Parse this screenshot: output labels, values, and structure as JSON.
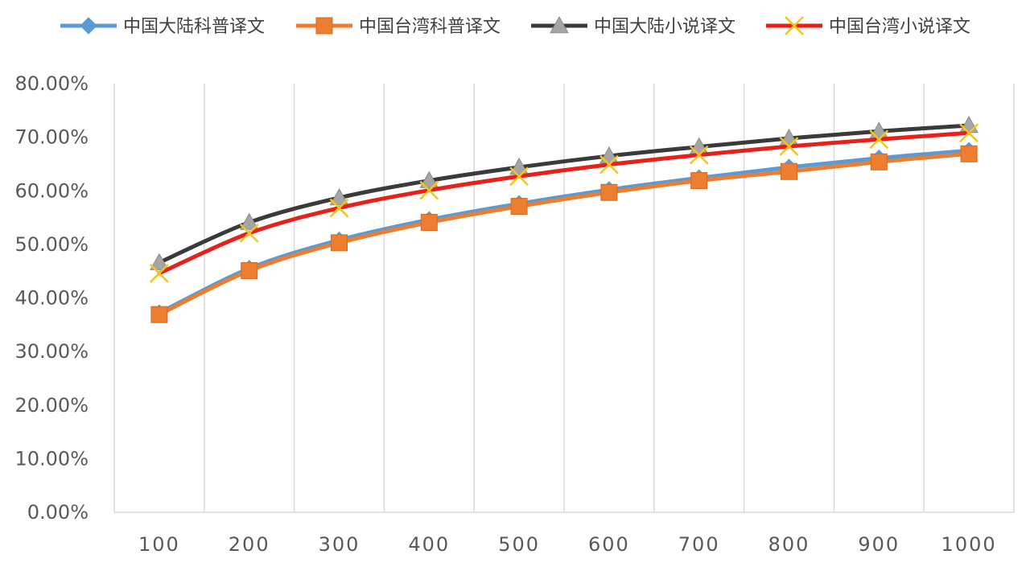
{
  "chart_data": {
    "type": "line",
    "title": "",
    "xlabel": "",
    "ylabel": "",
    "categories": [
      "100",
      "200",
      "300",
      "400",
      "500",
      "600",
      "700",
      "800",
      "900",
      "1000"
    ],
    "ylim": [
      0,
      0.8
    ],
    "y_ticks": [
      "0.00%",
      "10.00%",
      "20.00%",
      "30.00%",
      "40.00%",
      "50.00%",
      "60.00%",
      "70.00%",
      "80.00%"
    ],
    "grid": {
      "vertical": true,
      "horizontal": false
    },
    "legend_position": "top",
    "series": [
      {
        "name": "中国大陆科普译文",
        "color": "#5B9BD5",
        "marker": "diamond",
        "values": [
          0.372,
          0.455,
          0.508,
          0.546,
          0.576,
          0.602,
          0.624,
          0.644,
          0.661,
          0.675
        ]
      },
      {
        "name": "中国台湾科普译文",
        "color": "#ED7D31",
        "marker": "square",
        "values": [
          0.369,
          0.451,
          0.503,
          0.541,
          0.571,
          0.597,
          0.619,
          0.636,
          0.654,
          0.669
        ]
      },
      {
        "name": "中国大陆小说译文",
        "color": "#3A3A3A",
        "marker": "triangle",
        "values": [
          0.466,
          0.541,
          0.587,
          0.619,
          0.644,
          0.665,
          0.682,
          0.698,
          0.711,
          0.722
        ]
      },
      {
        "name": "中国台湾小说译文",
        "color": "#E8201A",
        "marker": "x",
        "values": [
          0.446,
          0.521,
          0.568,
          0.601,
          0.627,
          0.649,
          0.667,
          0.683,
          0.696,
          0.708
        ]
      }
    ]
  }
}
